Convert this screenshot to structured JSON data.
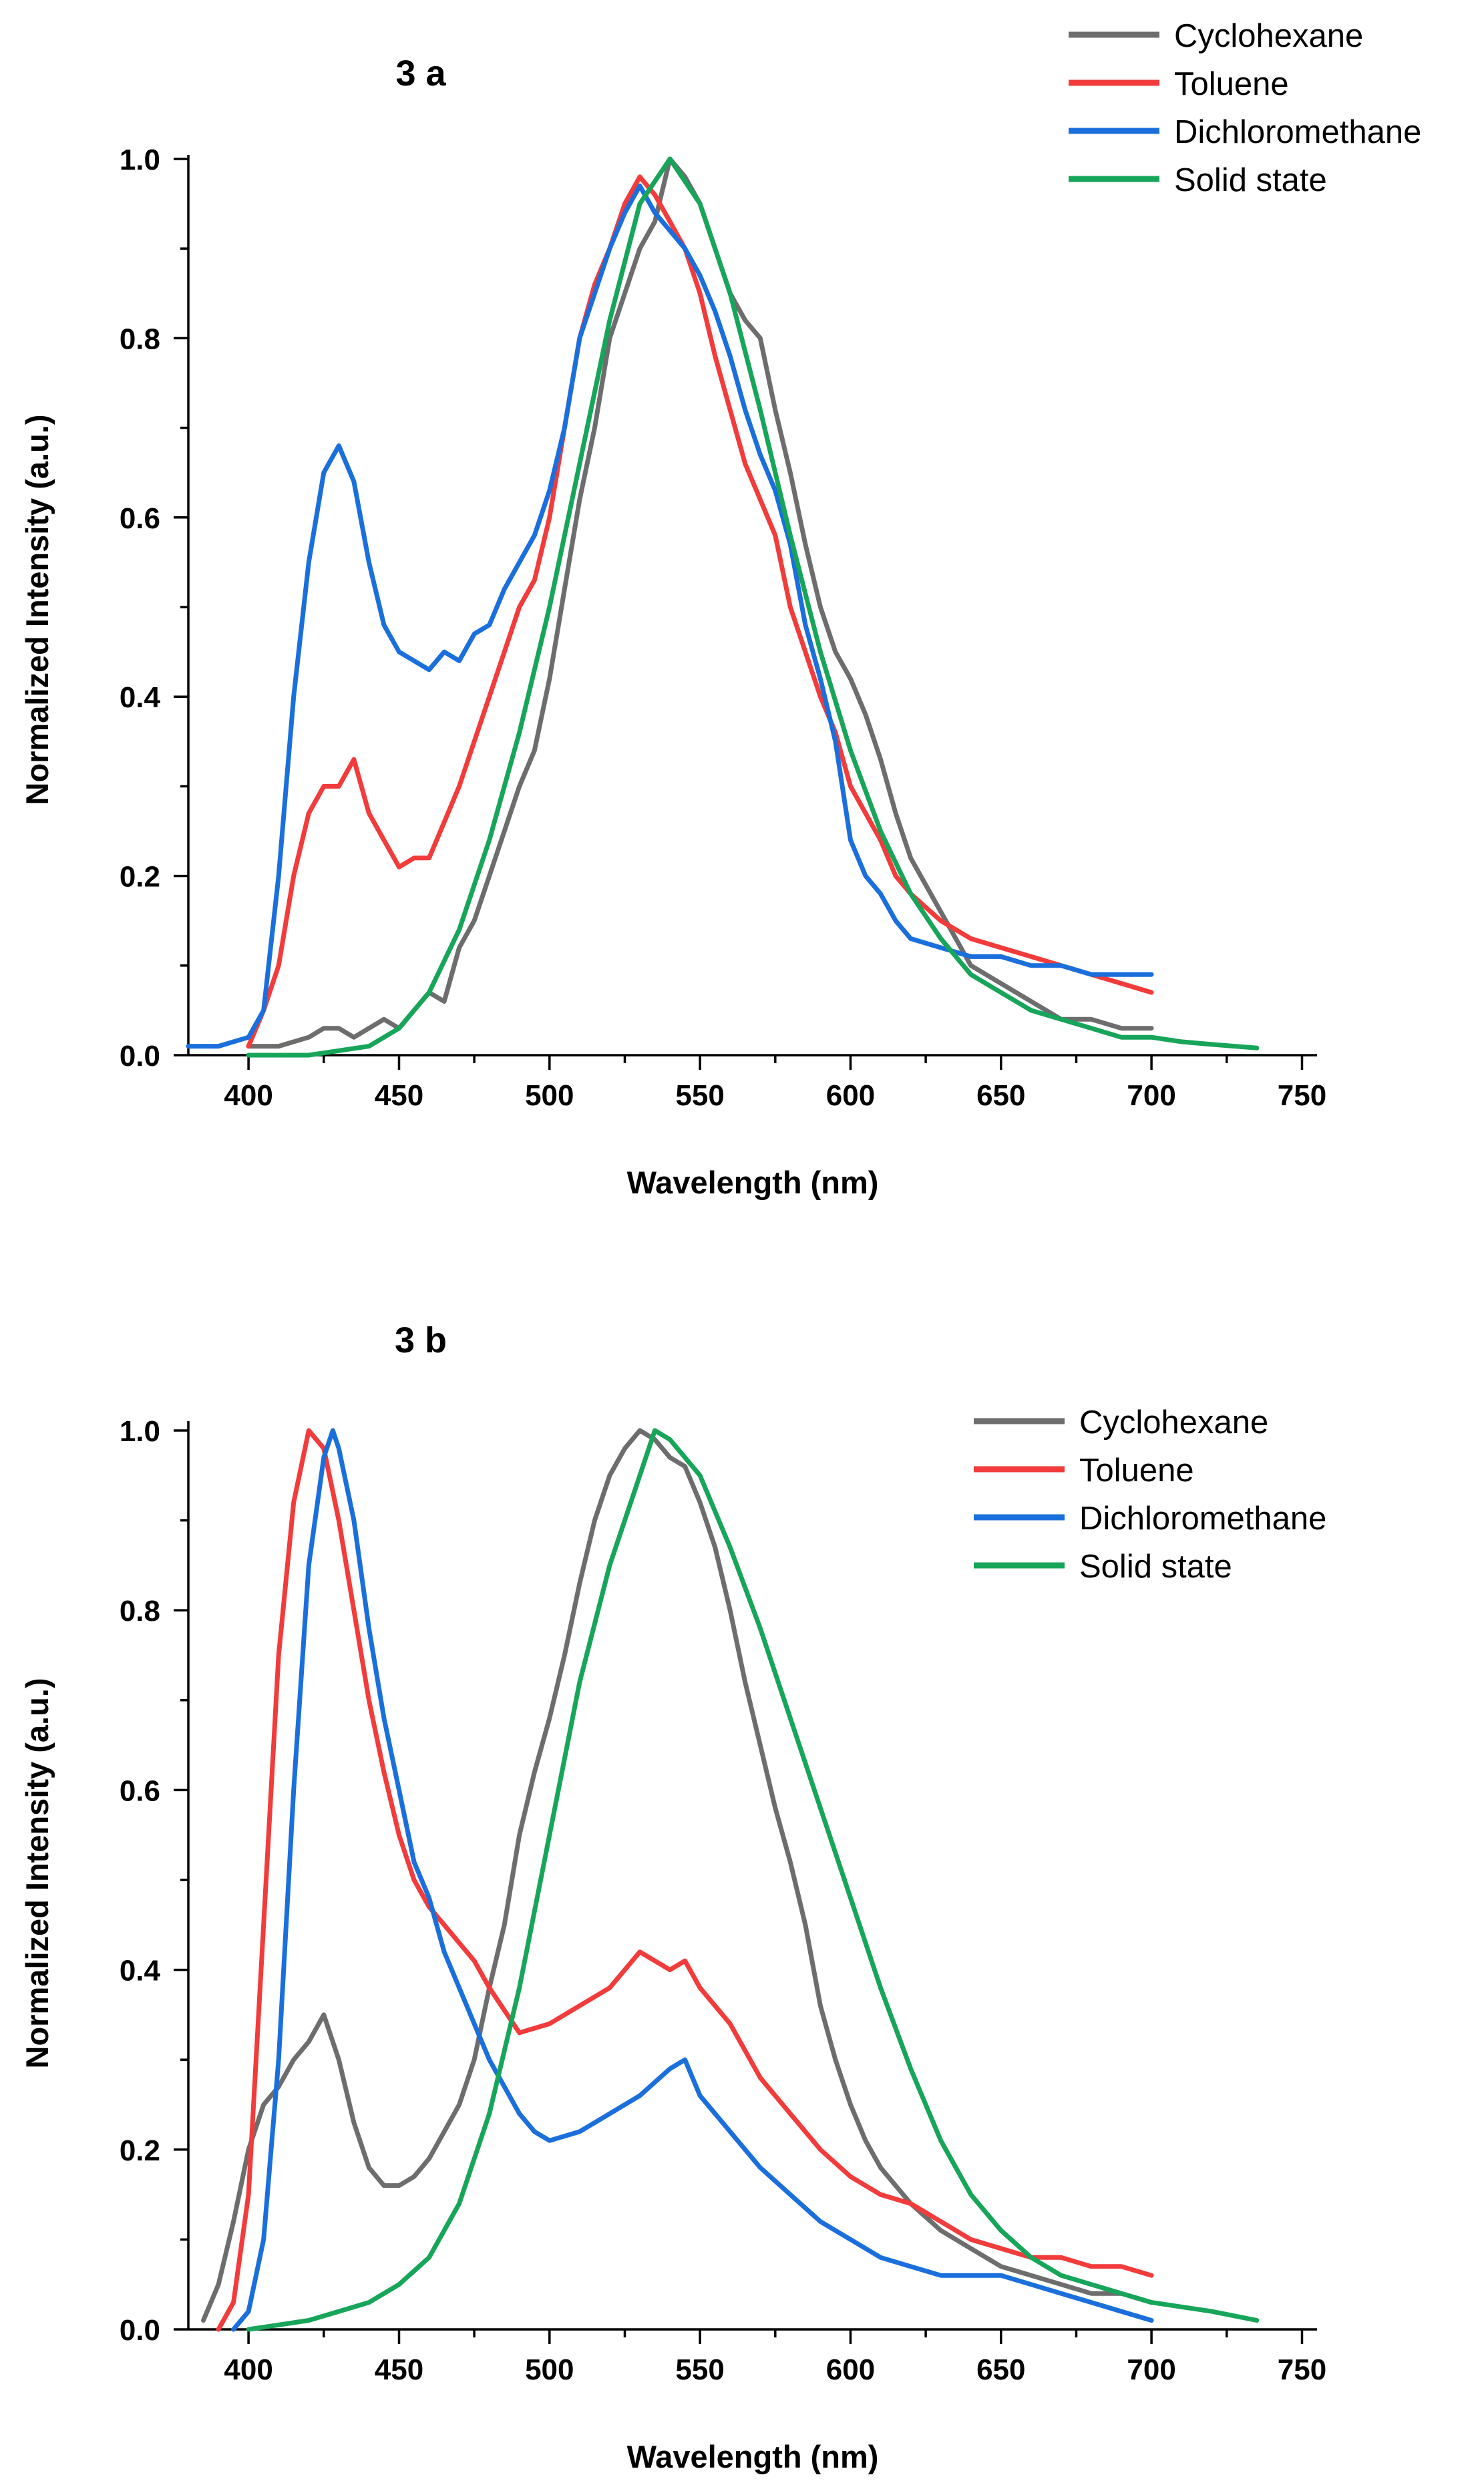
{
  "chart_data": [
    {
      "type": "line",
      "title": "3 a",
      "xlabel": "Wavelength (nm)",
      "ylabel": "Normalized Intensity (a.u.)",
      "xlim": [
        380,
        755
      ],
      "ylim": [
        0,
        1.0
      ],
      "xticks": [
        400,
        450,
        500,
        550,
        600,
        650,
        700,
        750
      ],
      "xtick_labels": [
        "400",
        "450",
        "500",
        "550",
        "600",
        "650",
        "700",
        "750"
      ],
      "yticks": [
        0.0,
        0.2,
        0.4,
        0.6,
        0.8,
        1.0
      ],
      "ytick_labels": [
        "0.0",
        "0.2",
        "0.4",
        "0.6",
        "0.8",
        "1.0"
      ],
      "legend_position": "top-right",
      "series": [
        {
          "name": "Cyclohexane",
          "color": "#6d6d6d",
          "x": [
            400,
            410,
            420,
            425,
            430,
            435,
            440,
            445,
            450,
            455,
            460,
            465,
            470,
            475,
            480,
            485,
            490,
            495,
            500,
            505,
            510,
            515,
            520,
            525,
            530,
            535,
            540,
            545,
            550,
            555,
            560,
            565,
            570,
            575,
            580,
            585,
            590,
            595,
            600,
            605,
            610,
            615,
            620,
            625,
            630,
            640,
            650,
            660,
            670,
            680,
            690,
            700
          ],
          "y": [
            0.01,
            0.01,
            0.02,
            0.03,
            0.03,
            0.02,
            0.03,
            0.04,
            0.03,
            0.05,
            0.07,
            0.06,
            0.12,
            0.15,
            0.2,
            0.25,
            0.3,
            0.34,
            0.42,
            0.52,
            0.62,
            0.7,
            0.8,
            0.85,
            0.9,
            0.93,
            1.0,
            0.98,
            0.95,
            0.9,
            0.85,
            0.82,
            0.8,
            0.72,
            0.65,
            0.57,
            0.5,
            0.45,
            0.42,
            0.38,
            0.33,
            0.27,
            0.22,
            0.19,
            0.16,
            0.1,
            0.08,
            0.06,
            0.04,
            0.04,
            0.03,
            0.03
          ]
        },
        {
          "name": "Toluene",
          "color": "#f23b3b",
          "x": [
            400,
            405,
            410,
            415,
            420,
            425,
            430,
            435,
            440,
            445,
            450,
            455,
            460,
            465,
            470,
            475,
            480,
            485,
            490,
            495,
            500,
            505,
            510,
            515,
            520,
            525,
            530,
            535,
            540,
            545,
            550,
            555,
            560,
            565,
            570,
            575,
            580,
            585,
            590,
            595,
            600,
            605,
            610,
            615,
            620,
            630,
            640,
            650,
            660,
            670,
            680,
            690,
            700
          ],
          "y": [
            0.01,
            0.05,
            0.1,
            0.2,
            0.27,
            0.3,
            0.3,
            0.33,
            0.27,
            0.24,
            0.21,
            0.22,
            0.22,
            0.26,
            0.3,
            0.35,
            0.4,
            0.45,
            0.5,
            0.53,
            0.6,
            0.7,
            0.8,
            0.86,
            0.9,
            0.95,
            0.98,
            0.96,
            0.93,
            0.9,
            0.85,
            0.78,
            0.72,
            0.66,
            0.62,
            0.58,
            0.5,
            0.45,
            0.4,
            0.36,
            0.3,
            0.27,
            0.24,
            0.2,
            0.18,
            0.15,
            0.13,
            0.12,
            0.11,
            0.1,
            0.09,
            0.08,
            0.07
          ]
        },
        {
          "name": "Dichloromethane",
          "color": "#1a6fdc",
          "x": [
            380,
            390,
            400,
            405,
            410,
            415,
            420,
            425,
            430,
            435,
            440,
            445,
            450,
            455,
            460,
            465,
            470,
            475,
            480,
            485,
            490,
            495,
            500,
            505,
            510,
            515,
            520,
            525,
            530,
            535,
            540,
            545,
            550,
            555,
            560,
            565,
            570,
            575,
            580,
            585,
            590,
            595,
            600,
            605,
            610,
            615,
            620,
            630,
            640,
            650,
            660,
            670,
            680,
            690,
            700
          ],
          "y": [
            0.01,
            0.01,
            0.02,
            0.05,
            0.2,
            0.4,
            0.55,
            0.65,
            0.68,
            0.64,
            0.55,
            0.48,
            0.45,
            0.44,
            0.43,
            0.45,
            0.44,
            0.47,
            0.48,
            0.52,
            0.55,
            0.58,
            0.63,
            0.7,
            0.8,
            0.85,
            0.9,
            0.94,
            0.97,
            0.94,
            0.92,
            0.9,
            0.87,
            0.83,
            0.78,
            0.72,
            0.67,
            0.63,
            0.57,
            0.48,
            0.42,
            0.35,
            0.24,
            0.2,
            0.18,
            0.15,
            0.13,
            0.12,
            0.11,
            0.11,
            0.1,
            0.1,
            0.09,
            0.09,
            0.09
          ]
        },
        {
          "name": "Solid state",
          "color": "#17a55a",
          "x": [
            400,
            420,
            440,
            450,
            460,
            470,
            480,
            490,
            500,
            510,
            520,
            530,
            540,
            550,
            560,
            570,
            580,
            590,
            600,
            610,
            620,
            630,
            640,
            650,
            660,
            670,
            680,
            690,
            700,
            710,
            720,
            735
          ],
          "y": [
            0.0,
            0.0,
            0.01,
            0.03,
            0.07,
            0.14,
            0.24,
            0.36,
            0.5,
            0.66,
            0.82,
            0.95,
            1.0,
            0.95,
            0.85,
            0.72,
            0.58,
            0.45,
            0.34,
            0.25,
            0.18,
            0.13,
            0.09,
            0.07,
            0.05,
            0.04,
            0.03,
            0.02,
            0.02,
            0.015,
            0.012,
            0.008
          ]
        }
      ]
    },
    {
      "type": "line",
      "title": "3 b",
      "xlabel": "Wavelength (nm)",
      "ylabel": "Normalized Intensity (a.u.)",
      "xlim": [
        380,
        755
      ],
      "ylim": [
        0,
        1.0
      ],
      "xticks": [
        400,
        450,
        500,
        550,
        600,
        650,
        700,
        750
      ],
      "xtick_labels": [
        "400",
        "450",
        "500",
        "550",
        "600",
        "650",
        "700",
        "750"
      ],
      "yticks": [
        0.0,
        0.2,
        0.4,
        0.6,
        0.8,
        1.0
      ],
      "ytick_labels": [
        "0.0",
        "0.2",
        "0.4",
        "0.6",
        "0.8",
        "1.0"
      ],
      "legend_position": "top-right",
      "series": [
        {
          "name": "Cyclohexane",
          "color": "#6d6d6d",
          "x": [
            385,
            390,
            395,
            400,
            405,
            410,
            415,
            420,
            425,
            430,
            435,
            440,
            445,
            450,
            455,
            460,
            465,
            470,
            475,
            480,
            485,
            490,
            495,
            500,
            505,
            510,
            515,
            520,
            525,
            530,
            535,
            540,
            545,
            550,
            555,
            560,
            565,
            570,
            575,
            580,
            585,
            590,
            595,
            600,
            605,
            610,
            620,
            630,
            640,
            650,
            660,
            670,
            680,
            690,
            700
          ],
          "y": [
            0.01,
            0.05,
            0.12,
            0.2,
            0.25,
            0.27,
            0.3,
            0.32,
            0.35,
            0.3,
            0.23,
            0.18,
            0.16,
            0.16,
            0.17,
            0.19,
            0.22,
            0.25,
            0.3,
            0.38,
            0.45,
            0.55,
            0.62,
            0.68,
            0.75,
            0.83,
            0.9,
            0.95,
            0.98,
            1.0,
            0.99,
            0.97,
            0.96,
            0.92,
            0.87,
            0.8,
            0.72,
            0.65,
            0.58,
            0.52,
            0.45,
            0.36,
            0.3,
            0.25,
            0.21,
            0.18,
            0.14,
            0.11,
            0.09,
            0.07,
            0.06,
            0.05,
            0.04,
            0.04,
            0.03
          ]
        },
        {
          "name": "Toluene",
          "color": "#f23b3b",
          "x": [
            390,
            395,
            400,
            405,
            410,
            415,
            420,
            425,
            430,
            435,
            440,
            445,
            450,
            455,
            460,
            465,
            470,
            475,
            480,
            490,
            500,
            510,
            520,
            525,
            530,
            535,
            540,
            545,
            550,
            560,
            570,
            580,
            590,
            600,
            610,
            620,
            630,
            640,
            650,
            660,
            670,
            680,
            690,
            700
          ],
          "y": [
            0.0,
            0.03,
            0.15,
            0.45,
            0.75,
            0.92,
            1.0,
            0.98,
            0.9,
            0.8,
            0.7,
            0.62,
            0.55,
            0.5,
            0.47,
            0.45,
            0.43,
            0.41,
            0.38,
            0.33,
            0.34,
            0.36,
            0.38,
            0.4,
            0.42,
            0.41,
            0.4,
            0.41,
            0.38,
            0.34,
            0.28,
            0.24,
            0.2,
            0.17,
            0.15,
            0.14,
            0.12,
            0.1,
            0.09,
            0.08,
            0.08,
            0.07,
            0.07,
            0.06
          ]
        },
        {
          "name": "Dichloromethane",
          "color": "#1a6fdc",
          "x": [
            395,
            400,
            405,
            410,
            415,
            420,
            425,
            428,
            430,
            435,
            440,
            445,
            450,
            455,
            460,
            465,
            470,
            475,
            480,
            485,
            490,
            495,
            500,
            510,
            520,
            530,
            540,
            545,
            550,
            560,
            570,
            580,
            590,
            600,
            610,
            620,
            630,
            640,
            650,
            660,
            670,
            680,
            690,
            700
          ],
          "y": [
            0.0,
            0.02,
            0.1,
            0.3,
            0.6,
            0.85,
            0.97,
            1.0,
            0.98,
            0.9,
            0.78,
            0.68,
            0.6,
            0.52,
            0.48,
            0.42,
            0.38,
            0.34,
            0.3,
            0.27,
            0.24,
            0.22,
            0.21,
            0.22,
            0.24,
            0.26,
            0.29,
            0.3,
            0.26,
            0.22,
            0.18,
            0.15,
            0.12,
            0.1,
            0.08,
            0.07,
            0.06,
            0.06,
            0.06,
            0.05,
            0.04,
            0.03,
            0.02,
            0.01
          ]
        },
        {
          "name": "Solid state",
          "color": "#17a55a",
          "x": [
            400,
            410,
            420,
            430,
            440,
            450,
            460,
            470,
            480,
            490,
            500,
            510,
            520,
            530,
            535,
            540,
            550,
            560,
            570,
            580,
            590,
            600,
            610,
            620,
            630,
            640,
            650,
            660,
            670,
            680,
            690,
            700,
            710,
            720,
            735
          ],
          "y": [
            0.0,
            0.005,
            0.01,
            0.02,
            0.03,
            0.05,
            0.08,
            0.14,
            0.24,
            0.38,
            0.55,
            0.72,
            0.85,
            0.95,
            1.0,
            0.99,
            0.95,
            0.87,
            0.78,
            0.68,
            0.58,
            0.48,
            0.38,
            0.29,
            0.21,
            0.15,
            0.11,
            0.08,
            0.06,
            0.05,
            0.04,
            0.03,
            0.025,
            0.02,
            0.01
          ]
        }
      ]
    }
  ]
}
